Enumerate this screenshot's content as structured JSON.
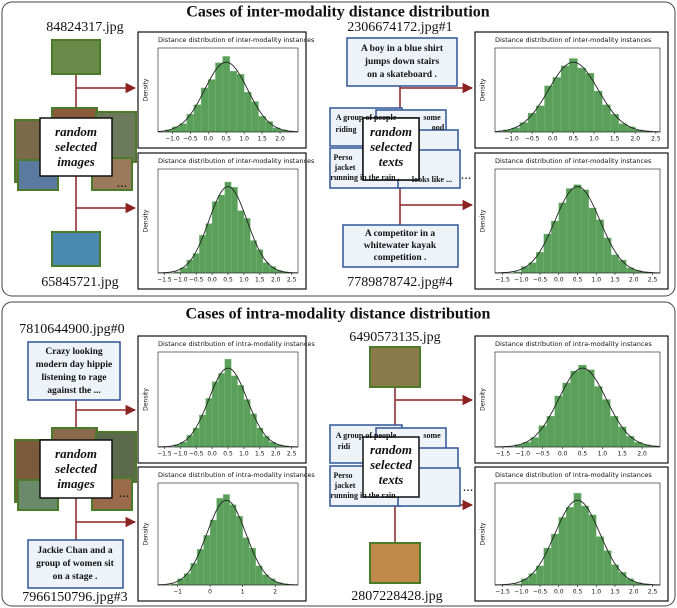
{
  "panels": [
    {
      "title": "Cases of inter-modality distance distribution",
      "left": {
        "top_file": "84824317.jpg",
        "center": [
          "random",
          "selected",
          "images"
        ],
        "ellipsis": "...",
        "bottom_file": "65845721.jpg"
      },
      "right": {
        "top_file": "2306674172.jpg#1",
        "top_caption": [
          "A boy in a blue shirt",
          "jumps down stairs",
          "on a skateboard ."
        ],
        "fragments": [
          "A group of people",
          "riding",
          "some",
          "ood",
          "Perso",
          "jacket",
          "running in the rain .",
          "looks like ..."
        ],
        "center": [
          "random",
          "selected",
          "texts"
        ],
        "ellipsis": "...",
        "bottom_caption": [
          "A competitor in a",
          "whitewater kayak",
          "competition ."
        ],
        "bottom_file": "7789878742.jpg#4"
      }
    },
    {
      "title": "Cases of intra-modality distance distribution",
      "left": {
        "top_file": "7810644900.jpg#0",
        "top_caption": [
          "Crazy looking",
          "modern day hippie",
          "listening to rage",
          "against the ..."
        ],
        "center": [
          "random",
          "selected",
          "images"
        ],
        "ellipsis": "...",
        "bottom_caption": [
          "Jackie Chan and a",
          "group of women sit",
          "on a stage ."
        ],
        "bottom_file": "7966150796.jpg#3"
      },
      "right": {
        "top_file": "6490573135.jpg",
        "fragments": [
          "A group of people",
          "ridi",
          "some",
          "Perso",
          "jacket",
          "running in the rain ."
        ],
        "center": [
          "random",
          "selected",
          "texts"
        ],
        "ellipsis": "...",
        "bottom_file": "2807228428.jpg"
      }
    }
  ],
  "chart_data": [
    {
      "type": "histogram",
      "title": "Distance distribution of inter-modality instances",
      "ylabel": "Density",
      "color": "#5aa05a",
      "bins": [
        -1.2,
        -1.0,
        -0.8,
        -0.6,
        -0.4,
        -0.2,
        0,
        0.2,
        0.4,
        0.6,
        0.8,
        1.0,
        1.2,
        1.4,
        1.6,
        1.8,
        2.0,
        2.2,
        2.4
      ],
      "values": [
        0.02,
        0.05,
        0.08,
        0.17,
        0.26,
        0.42,
        0.5,
        0.66,
        0.72,
        0.58,
        0.55,
        0.38,
        0.29,
        0.15,
        0.1,
        0.04,
        0.02,
        0.01
      ],
      "fit": {
        "mean": 0.5,
        "std": 0.6
      },
      "xlim": [
        -1.4,
        2.5
      ],
      "ylim": [
        0,
        0.8
      ],
      "xticks": [
        {
          "value": -1,
          "label": "−1.0"
        },
        {
          "value": -0.5,
          "label": "−0.5"
        },
        {
          "value": 0,
          "label": "0.0"
        },
        0.5,
        {
          "value": 1,
          "label": "1.0"
        },
        1.5,
        {
          "value": 2,
          "label": "2.0"
        }
      ]
    },
    {
      "type": "histogram",
      "title": "Distance distribution of inter-modality instances",
      "ylabel": "Density",
      "color": "#5aa05a",
      "bins": [
        -1.2,
        -1.0,
        -0.8,
        -0.6,
        -0.4,
        -0.2,
        0,
        0.2,
        0.4,
        0.6,
        0.8,
        1.0,
        1.2,
        1.4,
        1.6,
        1.8,
        2.0,
        2.2,
        2.4
      ],
      "values": [
        0.01,
        0.04,
        0.1,
        0.15,
        0.29,
        0.38,
        0.55,
        0.6,
        0.7,
        0.66,
        0.48,
        0.42,
        0.25,
        0.18,
        0.08,
        0.05,
        0.02,
        0.01
      ],
      "fit": {
        "mean": 0.5,
        "std": 0.6
      },
      "xlim": [
        -1.7,
        2.7
      ],
      "ylim": [
        0,
        0.8
      ],
      "xticks": [
        {
          "value": -1.5,
          "label": "−1.5"
        },
        {
          "value": -1,
          "label": "−1.0"
        },
        {
          "value": -0.5,
          "label": "−0.5"
        },
        {
          "value": 0,
          "label": "0.0"
        },
        0.5,
        {
          "value": 1,
          "label": "1.0"
        },
        1.5,
        {
          "value": 2,
          "label": "2.0"
        },
        2.5
      ]
    },
    {
      "type": "histogram",
      "title": "Distance distribution of inter-modality instances",
      "ylabel": "Density",
      "color": "#5aa05a",
      "bins": [
        -1.2,
        -1.0,
        -0.8,
        -0.6,
        -0.4,
        -0.2,
        0,
        0.2,
        0.4,
        0.6,
        0.8,
        1.0,
        1.2,
        1.4,
        1.6,
        1.8,
        2.0,
        2.2,
        2.4
      ],
      "values": [
        0.02,
        0.04,
        0.09,
        0.18,
        0.25,
        0.44,
        0.52,
        0.63,
        0.7,
        0.61,
        0.56,
        0.39,
        0.26,
        0.17,
        0.08,
        0.05,
        0.02,
        0.01
      ],
      "fit": {
        "mean": 0.5,
        "std": 0.6
      },
      "xlim": [
        -1.4,
        2.6
      ],
      "ylim": [
        0,
        0.8
      ],
      "xticks": [
        {
          "value": -1,
          "label": "−1.0"
        },
        {
          "value": -0.5,
          "label": "−0.5"
        },
        {
          "value": 0,
          "label": "0.0"
        },
        0.5,
        {
          "value": 1,
          "label": "1.0"
        },
        1.5,
        {
          "value": 2,
          "label": "2.0"
        },
        2.5
      ]
    },
    {
      "type": "histogram",
      "title": "Distance distribution of inter-modality instances",
      "ylabel": "Density",
      "color": "#5aa05a",
      "bins": [
        -1.2,
        -1.0,
        -0.8,
        -0.6,
        -0.4,
        -0.2,
        0,
        0.2,
        0.4,
        0.6,
        0.8,
        1.0,
        1.2,
        1.4,
        1.6,
        1.8,
        2.0,
        2.2,
        2.4
      ],
      "values": [
        0.01,
        0.05,
        0.08,
        0.16,
        0.3,
        0.4,
        0.54,
        0.65,
        0.68,
        0.64,
        0.5,
        0.41,
        0.27,
        0.14,
        0.1,
        0.04,
        0.02,
        0.01
      ],
      "fit": {
        "mean": 0.5,
        "std": 0.6
      },
      "xlim": [
        -1.7,
        2.7
      ],
      "ylim": [
        0,
        0.8
      ],
      "xticks": [
        {
          "value": -1.5,
          "label": "−1.5"
        },
        {
          "value": -1,
          "label": "−1.0"
        },
        {
          "value": -0.5,
          "label": "−0.5"
        },
        {
          "value": 0,
          "label": "0.0"
        },
        0.5,
        {
          "value": 1,
          "label": "1.0"
        },
        1.5,
        {
          "value": 2,
          "label": "2.0"
        },
        2.5
      ]
    },
    {
      "type": "histogram",
      "title": "Distance distribution of intra-modality instances",
      "ylabel": "Density",
      "color": "#5aa05a",
      "bins": [
        -1.2,
        -1.0,
        -0.8,
        -0.6,
        -0.4,
        -0.2,
        0,
        0.2,
        0.4,
        0.6,
        0.8,
        1.0,
        1.2,
        1.4,
        1.6,
        1.8,
        2.0,
        2.2,
        2.4
      ],
      "values": [
        0.02,
        0.04,
        0.1,
        0.16,
        0.27,
        0.41,
        0.55,
        0.62,
        0.74,
        0.6,
        0.52,
        0.4,
        0.28,
        0.16,
        0.09,
        0.04,
        0.02,
        0.01
      ],
      "fit": {
        "mean": 0.5,
        "std": 0.6
      },
      "xlim": [
        -1.7,
        2.7
      ],
      "ylim": [
        0,
        0.8
      ],
      "xticks": [
        {
          "value": -1.5,
          "label": "−1.5"
        },
        {
          "value": -1,
          "label": "−1.0"
        },
        {
          "value": -0.5,
          "label": "−0.5"
        },
        {
          "value": 0,
          "label": "0.0"
        },
        0.5,
        {
          "value": 1,
          "label": "1.0"
        },
        1.5,
        {
          "value": 2,
          "label": "2.0"
        },
        2.5
      ]
    },
    {
      "type": "histogram",
      "title": "Distance distribution of intra-modality instances",
      "ylabel": "Density",
      "color": "#5aa05a",
      "bins": [
        -1.2,
        -1.0,
        -0.8,
        -0.6,
        -0.4,
        -0.2,
        0,
        0.2,
        0.4,
        0.6,
        0.8,
        1.0,
        1.2,
        1.4,
        1.6,
        1.8,
        2.0,
        2.2,
        2.4
      ],
      "values": [
        0.01,
        0.05,
        0.09,
        0.17,
        0.28,
        0.39,
        0.51,
        0.68,
        0.71,
        0.63,
        0.54,
        0.37,
        0.29,
        0.15,
        0.08,
        0.05,
        0.02,
        0.01
      ],
      "fit": {
        "mean": 0.5,
        "std": 0.6
      },
      "xlim": [
        -1.6,
        2.7
      ],
      "ylim": [
        0,
        0.8
      ],
      "xticks": [
        {
          "value": -1,
          "label": "−1"
        },
        0,
        1,
        2
      ]
    },
    {
      "type": "histogram",
      "title": "Distance distribution of intra-modality instances",
      "ylabel": "Density",
      "color": "#5aa05a",
      "bins": [
        -1.2,
        -1.0,
        -0.8,
        -0.6,
        -0.4,
        -0.2,
        0,
        0.2,
        0.4,
        0.6,
        0.8,
        1.0,
        1.2,
        1.4,
        1.6,
        1.8,
        2.0,
        2.2,
        2.4
      ],
      "values": [
        0.02,
        0.04,
        0.08,
        0.18,
        0.26,
        0.43,
        0.54,
        0.64,
        0.69,
        0.65,
        0.51,
        0.4,
        0.26,
        0.17,
        0.09,
        0.04,
        0.02,
        0.01
      ],
      "fit": {
        "mean": 0.5,
        "std": 0.6
      },
      "xlim": [
        -1.7,
        2.45
      ],
      "ylim": [
        0,
        0.8
      ],
      "xticks": [
        {
          "value": -1.5,
          "label": "−1.5"
        },
        {
          "value": -1,
          "label": "−1.0"
        },
        {
          "value": -0.5,
          "label": "−0.5"
        },
        {
          "value": 0,
          "label": "0.0"
        },
        0.5,
        {
          "value": 1,
          "label": "1.0"
        },
        1.5,
        {
          "value": 2,
          "label": "2.0"
        }
      ]
    },
    {
      "type": "histogram",
      "title": "Distance distribution of intra-modality instances",
      "ylabel": "Density",
      "color": "#5aa05a",
      "bins": [
        -1.2,
        -1.0,
        -0.8,
        -0.6,
        -0.4,
        -0.2,
        0,
        0.2,
        0.4,
        0.6,
        0.8,
        1.0,
        1.2,
        1.4,
        1.6,
        1.8,
        2.0,
        2.2,
        2.4
      ],
      "values": [
        0.01,
        0.05,
        0.09,
        0.15,
        0.29,
        0.4,
        0.53,
        0.61,
        0.72,
        0.62,
        0.55,
        0.38,
        0.27,
        0.16,
        0.1,
        0.05,
        0.02,
        0.01
      ],
      "fit": {
        "mean": 0.5,
        "std": 0.6
      },
      "xlim": [
        -1.7,
        2.7
      ],
      "ylim": [
        0,
        0.8
      ],
      "xticks": [
        {
          "value": -1.5,
          "label": "−1.5"
        },
        {
          "value": -1,
          "label": "−1.0"
        },
        {
          "value": -0.5,
          "label": "−0.5"
        },
        {
          "value": 0,
          "label": "0.0"
        },
        0.5,
        {
          "value": 1,
          "label": "1.0"
        },
        1.5,
        {
          "value": 2,
          "label": "2.0"
        },
        2.5
      ]
    }
  ]
}
